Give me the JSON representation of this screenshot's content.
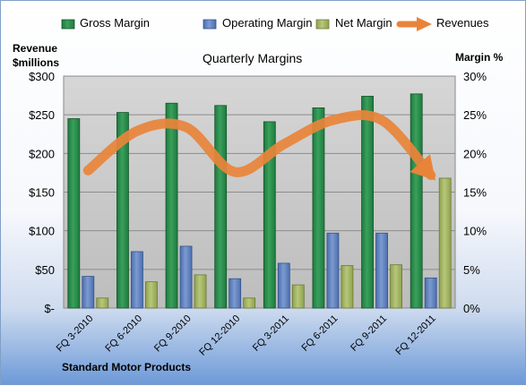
{
  "chart_data": {
    "type": "bar",
    "title": "Quarterly Margins",
    "categories": [
      "FQ 3-2010",
      "FQ 6-2010",
      "FQ 9-2010",
      "FQ 12-2010",
      "FQ 3-2011",
      "FQ 6-2011",
      "FQ 9-2011",
      "FQ 12-2011"
    ],
    "series": [
      {
        "name": "Gross Margin",
        "type": "bar",
        "axis": "right",
        "unit": "%",
        "values": [
          24.5,
          25.3,
          26.5,
          26.2,
          24.1,
          25.9,
          27.4,
          27.7
        ]
      },
      {
        "name": "Operating Margin",
        "type": "bar",
        "axis": "right",
        "unit": "%",
        "values": [
          4.1,
          7.3,
          8.0,
          3.8,
          5.8,
          9.7,
          9.7,
          3.9
        ]
      },
      {
        "name": "Net Margin",
        "type": "bar",
        "axis": "right",
        "unit": "%",
        "values": [
          1.3,
          3.4,
          4.3,
          1.3,
          3.0,
          5.5,
          5.6,
          16.8
        ]
      },
      {
        "name": "Revenues",
        "type": "line",
        "axis": "left",
        "unit": "$millions",
        "values": [
          178,
          229,
          234,
          176,
          212,
          243,
          243,
          172
        ]
      }
    ],
    "left_axis": {
      "title": "Revenue $millions",
      "title_lines": [
        "Revenue",
        "$millions"
      ],
      "ylim": [
        0,
        300
      ],
      "ticks": [
        "$-",
        "$50",
        "$100",
        "$150",
        "$200",
        "$250",
        "$300"
      ]
    },
    "right_axis": {
      "title": "Margin %",
      "ylim": [
        0,
        30
      ],
      "ticks": [
        "0%",
        "5%",
        "10%",
        "15%",
        "20%",
        "25%",
        "30%"
      ]
    },
    "legend": {
      "position": "top",
      "entries": [
        "Gross Margin",
        "Operating Margin",
        "Net Margin",
        "Revenues"
      ]
    },
    "grid": true,
    "source": "Standard Motor Products"
  },
  "colors": {
    "gross": "#1e7a3e",
    "operating": "#4a6fb0",
    "net": "#8fa24e",
    "revenues": "#e8843a",
    "plot_bg": "#c8c8c8"
  }
}
